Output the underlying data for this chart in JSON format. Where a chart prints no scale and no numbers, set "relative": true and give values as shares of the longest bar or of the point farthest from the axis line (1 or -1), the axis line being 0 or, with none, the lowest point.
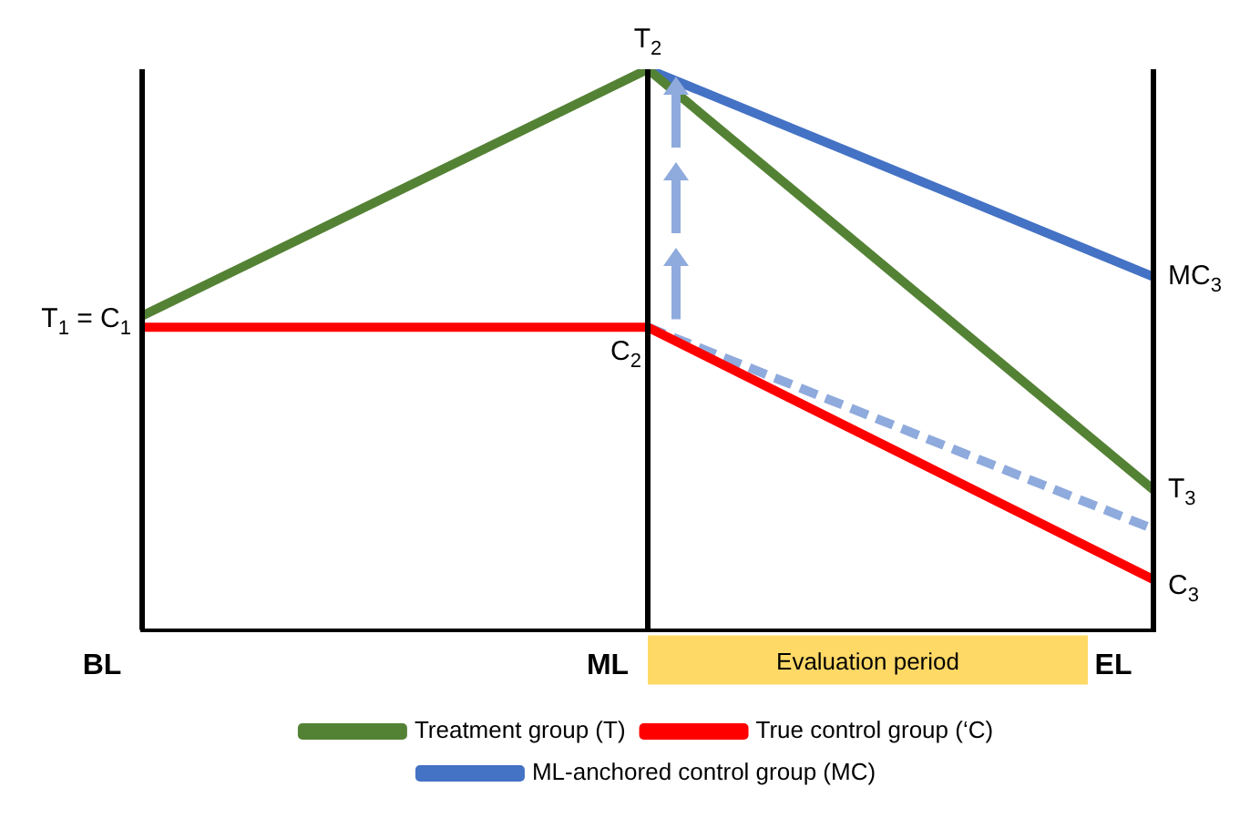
{
  "chart_data": {
    "type": "line",
    "relative": true,
    "categories": [
      "BL",
      "ML",
      "EL"
    ],
    "series": [
      {
        "name": "Treatment group (T)",
        "color": "#548235",
        "values": [
          0.56,
          1,
          0.25
        ]
      },
      {
        "name": "True control group (‘C)",
        "color": "#ff0000",
        "values": [
          0.54,
          0.54,
          0.09
        ]
      },
      {
        "name": "ML-anchored control group (MC)",
        "color": "#4472c4",
        "values": [
          null,
          1,
          0.63
        ]
      },
      {
        "color": "#8faadc",
        "values": [
          null,
          0.54,
          0.18
        ],
        "line_style": "dashed"
      }
    ],
    "annotations": [
      "T$_{1}$ = C$_{1}$",
      "T$_{2}$",
      "C$_{2}$",
      "MC$_{3}$",
      "T$_{3}$",
      "C$_{3}$",
      "Evaluation period"
    ],
    "ref_lines": [
      {
        "axis": "x",
        "value": "ML",
        "color": "#000000"
      }
    ],
    "legend": "bottom",
    "marker": "none",
    "line_style": "solid"
  }
}
